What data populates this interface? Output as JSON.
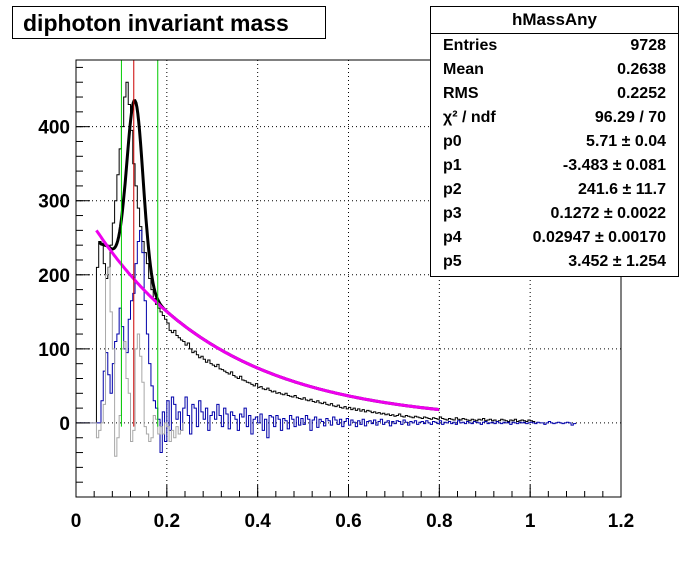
{
  "title": "diphoton invariant mass",
  "stats": {
    "name": "hMassAny",
    "rows": [
      {
        "key": "Entries",
        "value": "9728"
      },
      {
        "key": "Mean",
        "value": "0.2638"
      },
      {
        "key": "RMS",
        "value": "0.2252"
      },
      {
        "key": "χ² / ndf",
        "value": "96.29 / 70"
      },
      {
        "key": "p0",
        "value": "5.71 ± 0.04"
      },
      {
        "key": "p1",
        "value": "-3.483 ± 0.081"
      },
      {
        "key": "p2",
        "value": "241.6 ± 11.7"
      },
      {
        "key": "p3",
        "value": "0.1272 ± 0.0022"
      },
      {
        "key": "p4",
        "value": "0.02947 ± 0.00170"
      },
      {
        "key": "p5",
        "value": "3.452 ± 1.254"
      }
    ]
  },
  "colors": {
    "total": "#000000",
    "signal": "#0000aa",
    "sideband": "#a8a8a8",
    "fit": "#000000",
    "background_fit": "#ee00ee",
    "peak_line": "#cc0000",
    "window_lines": "#00cc00",
    "grid": "#000000"
  },
  "chart_data": {
    "type": "histogram",
    "xlim": [
      0,
      1.2
    ],
    "ylim": [
      -100,
      490
    ],
    "x_ticks": [
      "0",
      "0.2",
      "0.4",
      "0.6",
      "0.8",
      "1",
      "1.2"
    ],
    "y_ticks": [
      "0",
      "100",
      "200",
      "300",
      "400"
    ],
    "grid": true,
    "bin_width": 0.005,
    "series": [
      {
        "id": "total",
        "x_start": 0.045,
        "values": [
          210,
          245,
          240,
          215,
          195,
          210,
          240,
          270,
          300,
          335,
          370,
          400,
          440,
          460,
          430,
          395,
          350,
          320,
          290,
          265,
          245,
          230,
          215,
          195,
          180,
          168,
          160,
          155,
          150,
          145,
          140,
          135,
          125,
          122,
          125,
          118,
          115,
          112,
          110,
          105,
          108,
          100,
          95,
          97,
          92,
          88,
          90,
          86,
          82,
          85,
          80,
          78,
          76,
          79,
          73,
          72,
          70,
          68,
          66,
          69,
          64,
          62,
          60,
          63,
          58,
          57,
          55,
          54,
          52,
          50,
          53,
          48,
          49,
          46,
          45,
          47,
          44,
          42,
          43,
          40,
          41,
          39,
          38,
          40,
          37,
          36,
          35,
          37,
          34,
          33,
          32,
          34,
          31,
          30,
          32,
          29,
          28,
          30,
          27,
          26,
          28,
          25,
          24,
          26,
          23,
          22,
          24,
          21,
          20,
          22,
          19,
          21,
          18,
          20,
          17,
          19,
          16,
          18,
          15,
          17,
          16,
          14,
          15,
          13,
          14,
          12,
          13,
          11,
          12,
          10,
          11,
          9,
          10,
          12,
          9,
          8,
          10,
          9,
          8,
          7,
          9,
          8,
          7,
          6,
          8,
          7,
          6,
          5,
          7,
          6,
          5,
          8,
          6,
          5,
          4,
          6,
          5,
          4,
          7,
          5,
          4,
          6,
          5,
          4,
          3,
          5,
          4,
          3,
          5,
          4,
          6,
          3,
          4,
          5,
          3,
          4,
          2,
          3,
          5,
          4,
          3,
          2,
          4,
          3,
          5,
          2,
          3,
          4,
          3,
          2,
          4,
          3,
          2
        ]
      },
      {
        "id": "signal",
        "x_start": 0.0,
        "values": [
          0,
          0,
          0,
          0,
          0,
          0,
          0,
          0,
          0,
          0,
          0,
          30,
          70,
          95,
          65,
          40,
          80,
          110,
          120,
          155,
          130,
          100,
          95,
          140,
          165,
          175,
          215,
          245,
          260,
          230,
          165,
          120,
          80,
          50,
          30,
          20,
          5,
          -40,
          15,
          -25,
          30,
          -10,
          35,
          25,
          5,
          15,
          -10,
          20,
          35,
          10,
          -15,
          25,
          20,
          -5,
          30,
          15,
          5,
          20,
          -10,
          10,
          15,
          5,
          25,
          10,
          -5,
          20,
          12,
          -8,
          15,
          10,
          5,
          -10,
          12,
          8,
          20,
          -5,
          10,
          -15,
          5,
          8,
          0,
          12,
          -10,
          5,
          -20,
          10,
          8,
          -5,
          10,
          5,
          -10,
          6,
          3,
          -8,
          10,
          5,
          -5,
          8,
          -3,
          6,
          -2,
          10,
          5,
          -10,
          4,
          8,
          -6,
          5,
          2,
          -4,
          6,
          3,
          -3,
          8,
          4,
          -2,
          5,
          -5,
          2,
          6,
          -3,
          4,
          1,
          -5,
          3,
          -2,
          5,
          -4,
          2,
          3,
          -1,
          4,
          -3,
          2,
          5,
          -2,
          1,
          3,
          -4,
          2,
          -1,
          3,
          2,
          -2,
          4,
          1,
          -3,
          2,
          0,
          3,
          -2,
          1,
          2,
          -1,
          3,
          0,
          -2,
          2,
          1,
          -1,
          3,
          -2,
          1,
          0,
          2,
          -1,
          1,
          -2,
          3,
          0,
          1,
          -1,
          2,
          0,
          -1,
          2,
          1,
          0,
          -2,
          1,
          2,
          -1,
          0,
          1,
          -1,
          2,
          0,
          -1,
          1,
          0,
          1,
          -2,
          1,
          0,
          -1,
          1,
          0,
          1,
          -1,
          0,
          1,
          0,
          -1,
          1,
          0,
          0,
          -2,
          0,
          2,
          0,
          -1,
          0,
          1,
          0,
          -1,
          0,
          1,
          0,
          -3,
          -1
        ]
      },
      {
        "id": "sideband",
        "x_start": 0.02,
        "values": [
          0,
          0,
          0,
          0,
          0,
          -20,
          -10,
          0,
          25,
          200,
          210,
          150,
          100,
          -45,
          -20,
          10,
          100,
          110,
          60,
          40,
          -25,
          -10,
          100,
          120,
          90,
          55,
          -5,
          -15,
          -25,
          -20,
          10,
          5,
          -15,
          -5,
          -15,
          0,
          -5,
          -25,
          -10,
          -20,
          -5,
          -15,
          -10
        ]
      }
    ],
    "fit_curve": {
      "x_range": [
        0.05,
        0.8
      ],
      "peak_x": 0.13,
      "peak_y": 435
    },
    "background_curve": {
      "x_range": [
        0.045,
        0.8
      ],
      "start_y": 260,
      "end_y": 18
    },
    "peak_line_x": 0.1272,
    "window_lines_x": [
      0.1,
      0.18
    ]
  }
}
